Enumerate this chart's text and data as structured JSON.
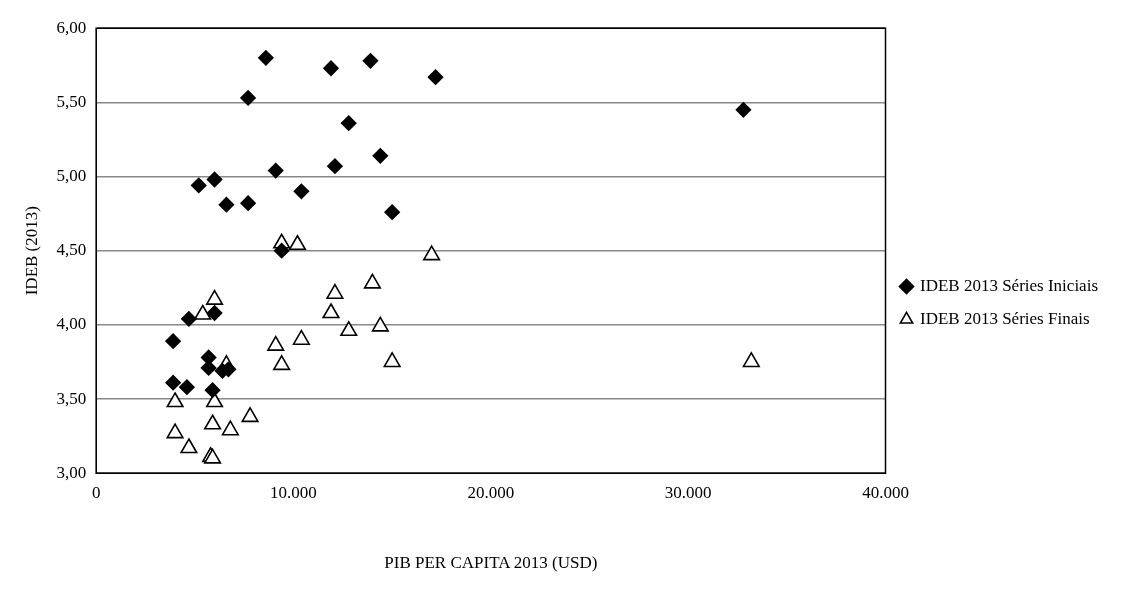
{
  "chart_data": {
    "type": "scatter",
    "xlabel": "PIB PER CAPITA 2013 (USD)",
    "ylabel": "IDEB (2013)",
    "xlim": [
      0,
      40000
    ],
    "xticks": [
      {
        "value": 0,
        "label": "0"
      },
      {
        "value": 10000,
        "label": "10.000"
      },
      {
        "value": 20000,
        "label": "20.000"
      },
      {
        "value": 30000,
        "label": "30.000"
      },
      {
        "value": 40000,
        "label": "40.000"
      }
    ],
    "ylim": [
      3,
      6
    ],
    "yticks": [
      {
        "value": 3,
        "label": "3,00"
      },
      {
        "value": 3.5,
        "label": "3,50"
      },
      {
        "value": 4,
        "label": "4,00"
      },
      {
        "value": 4.5,
        "label": "4,50"
      },
      {
        "value": 5,
        "label": "5,00"
      },
      {
        "value": 5.5,
        "label": "5,50"
      },
      {
        "value": 6,
        "label": "6,00"
      }
    ],
    "grid": "y",
    "legend": "right",
    "series": [
      {
        "name": "IDEB 2013 Séries Iniciais",
        "color": "#000000",
        "marker": "diamond",
        "x": [
          8600,
          11900,
          13900,
          17200,
          7700,
          32800,
          12800,
          14400,
          12100,
          9100,
          5200,
          6000,
          10400,
          7700,
          6600,
          15000,
          9400,
          4700,
          6000,
          3900,
          5700,
          5700,
          6700,
          6400,
          3900,
          4600,
          5900
        ],
        "values": [
          5.8,
          5.73,
          5.78,
          5.67,
          5.53,
          5.45,
          5.36,
          5.14,
          5.07,
          5.04,
          4.94,
          4.98,
          4.9,
          4.82,
          4.81,
          4.76,
          4.5,
          4.04,
          4.08,
          3.89,
          3.78,
          3.71,
          3.7,
          3.69,
          3.61,
          3.58,
          3.56
        ]
      },
      {
        "name": "IDEB 2013 Séries Finais",
        "color": "#000000",
        "marker": "triangle",
        "x": [
          9400,
          10200,
          17000,
          14000,
          12100,
          6000,
          5400,
          11900,
          9100,
          10400,
          12800,
          14400,
          9400,
          6600,
          15000,
          33200,
          4000,
          6000,
          7800,
          5900,
          6800,
          4000,
          4700,
          5800,
          5900
        ],
        "values": [
          4.55,
          4.54,
          4.47,
          4.28,
          4.21,
          4.17,
          4.07,
          4.08,
          3.86,
          3.9,
          3.96,
          3.99,
          3.73,
          3.73,
          3.75,
          3.75,
          3.48,
          3.48,
          3.38,
          3.33,
          3.29,
          3.27,
          3.17,
          3.11,
          3.1
        ]
      }
    ]
  }
}
